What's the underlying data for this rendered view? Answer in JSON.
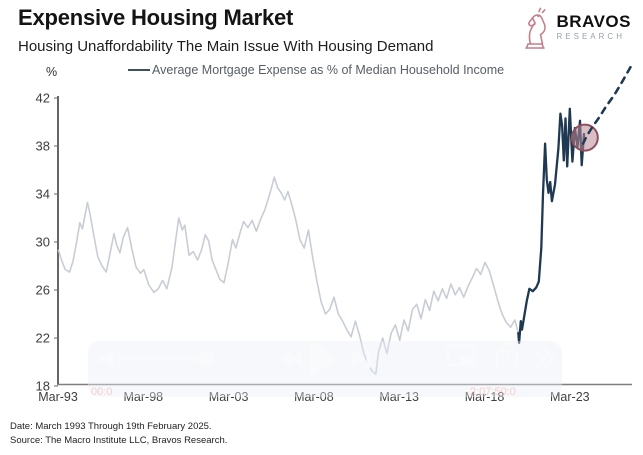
{
  "header": {
    "title": "Expensive Housing Market",
    "subtitle": "Housing Unaffordability The Main Issue With Housing Demand"
  },
  "logo": {
    "brand": "BRAVOS",
    "sub": "RESEARCH",
    "icon": "knight-chess-icon",
    "color": "#c57f8b"
  },
  "legend": {
    "label": "Average Mortgage Expense as % of Median Household Income",
    "swatch_color": "#3c4f63"
  },
  "chart_data": {
    "type": "line",
    "title": "Average Mortgage Expense as % of Median Household Income",
    "y_axis": {
      "label": "%",
      "ticks": [
        42,
        38,
        34,
        30,
        26,
        22,
        18
      ],
      "range": [
        18,
        42
      ],
      "grid": false
    },
    "x_axis": {
      "ticks": [
        "Mar-93",
        "Mar-98",
        "Mar-03",
        "Mar-08",
        "Mar-13",
        "Mar-18",
        "Mar-23"
      ],
      "tick_years": [
        1993.17,
        1998.17,
        2003.17,
        2008.17,
        2013.17,
        2018.17,
        2023.17
      ]
    },
    "series": [
      {
        "name": "historical",
        "color": "#c8cdd5",
        "style": "solid",
        "width": 1.6,
        "points": [
          [
            1993.2,
            29.3
          ],
          [
            1993.4,
            28.4
          ],
          [
            1993.6,
            27.7
          ],
          [
            1993.85,
            27.5
          ],
          [
            1994.05,
            28.4
          ],
          [
            1994.25,
            29.9
          ],
          [
            1994.45,
            31.6
          ],
          [
            1994.6,
            31.1
          ],
          [
            1994.9,
            33.3
          ],
          [
            1995.05,
            32.3
          ],
          [
            1995.25,
            30.7
          ],
          [
            1995.5,
            28.8
          ],
          [
            1995.75,
            28.0
          ],
          [
            1996.0,
            27.5
          ],
          [
            1996.2,
            28.9
          ],
          [
            1996.45,
            30.7
          ],
          [
            1996.6,
            29.8
          ],
          [
            1996.8,
            29.1
          ],
          [
            1997.0,
            30.4
          ],
          [
            1997.25,
            31.2
          ],
          [
            1997.5,
            29.4
          ],
          [
            1997.75,
            27.9
          ],
          [
            1998.0,
            27.4
          ],
          [
            1998.2,
            27.7
          ],
          [
            1998.5,
            26.4
          ],
          [
            1998.8,
            25.8
          ],
          [
            1999.05,
            26.1
          ],
          [
            1999.3,
            26.8
          ],
          [
            1999.55,
            26.1
          ],
          [
            1999.85,
            27.9
          ],
          [
            2000.05,
            30.0
          ],
          [
            2000.25,
            32.0
          ],
          [
            2000.45,
            31.0
          ],
          [
            2000.6,
            31.4
          ],
          [
            2000.85,
            28.9
          ],
          [
            2001.1,
            29.2
          ],
          [
            2001.35,
            28.5
          ],
          [
            2001.6,
            29.4
          ],
          [
            2001.8,
            30.6
          ],
          [
            2002.0,
            30.1
          ],
          [
            2002.2,
            28.5
          ],
          [
            2002.4,
            27.8
          ],
          [
            2002.65,
            26.9
          ],
          [
            2002.9,
            26.6
          ],
          [
            2003.15,
            28.3
          ],
          [
            2003.4,
            30.2
          ],
          [
            2003.6,
            29.5
          ],
          [
            2003.85,
            30.8
          ],
          [
            2004.05,
            31.7
          ],
          [
            2004.3,
            31.2
          ],
          [
            2004.55,
            31.8
          ],
          [
            2004.8,
            30.9
          ],
          [
            2005.05,
            31.9
          ],
          [
            2005.3,
            32.7
          ],
          [
            2005.6,
            34.1
          ],
          [
            2005.85,
            35.4
          ],
          [
            2006.05,
            34.5
          ],
          [
            2006.25,
            34.1
          ],
          [
            2006.45,
            33.5
          ],
          [
            2006.65,
            34.2
          ],
          [
            2006.9,
            33.0
          ],
          [
            2007.1,
            31.9
          ],
          [
            2007.35,
            30.2
          ],
          [
            2007.6,
            29.5
          ],
          [
            2007.85,
            31.0
          ],
          [
            2008.1,
            28.7
          ],
          [
            2008.35,
            26.7
          ],
          [
            2008.6,
            25.0
          ],
          [
            2008.85,
            24.0
          ],
          [
            2009.1,
            24.4
          ],
          [
            2009.35,
            25.4
          ],
          [
            2009.6,
            24.0
          ],
          [
            2009.85,
            23.4
          ],
          [
            2010.1,
            22.7
          ],
          [
            2010.35,
            22.1
          ],
          [
            2010.6,
            23.4
          ],
          [
            2010.85,
            22.2
          ],
          [
            2011.1,
            20.7
          ],
          [
            2011.35,
            19.8
          ],
          [
            2011.6,
            19.2
          ],
          [
            2011.8,
            19.0
          ],
          [
            2011.95,
            20.8
          ],
          [
            2012.2,
            22.0
          ],
          [
            2012.45,
            20.7
          ],
          [
            2012.7,
            22.4
          ],
          [
            2012.95,
            23.1
          ],
          [
            2013.2,
            21.8
          ],
          [
            2013.45,
            23.5
          ],
          [
            2013.7,
            22.6
          ],
          [
            2013.95,
            24.4
          ],
          [
            2014.2,
            24.8
          ],
          [
            2014.45,
            23.6
          ],
          [
            2014.7,
            25.2
          ],
          [
            2014.95,
            24.3
          ],
          [
            2015.2,
            25.9
          ],
          [
            2015.45,
            25.1
          ],
          [
            2015.7,
            26.1
          ],
          [
            2015.95,
            25.3
          ],
          [
            2016.2,
            26.5
          ],
          [
            2016.45,
            25.6
          ],
          [
            2016.7,
            26.2
          ],
          [
            2016.95,
            25.4
          ],
          [
            2017.2,
            26.3
          ],
          [
            2017.45,
            27.0
          ],
          [
            2017.7,
            27.8
          ],
          [
            2017.95,
            27.3
          ],
          [
            2018.2,
            28.3
          ],
          [
            2018.45,
            27.6
          ],
          [
            2018.7,
            26.4
          ],
          [
            2018.95,
            25.1
          ],
          [
            2019.2,
            24.0
          ],
          [
            2019.45,
            23.3
          ],
          [
            2019.7,
            22.9
          ],
          [
            2019.95,
            23.5
          ],
          [
            2020.15,
            22.4
          ]
        ]
      },
      {
        "name": "recent",
        "color": "#1e3951",
        "style": "solid",
        "width": 2.3,
        "points": [
          [
            2020.15,
            22.4
          ],
          [
            2020.2,
            21.6
          ],
          [
            2020.3,
            23.4
          ],
          [
            2020.37,
            22.7
          ],
          [
            2020.5,
            23.8
          ],
          [
            2020.65,
            25.1
          ],
          [
            2020.8,
            26.1
          ],
          [
            2021.0,
            25.9
          ],
          [
            2021.2,
            26.2
          ],
          [
            2021.35,
            26.7
          ],
          [
            2021.5,
            29.5
          ],
          [
            2021.6,
            34.0
          ],
          [
            2021.72,
            38.2
          ],
          [
            2021.82,
            35.2
          ],
          [
            2021.92,
            34.1
          ],
          [
            2022.02,
            35.0
          ],
          [
            2022.12,
            33.4
          ],
          [
            2022.3,
            34.8
          ],
          [
            2022.5,
            37.8
          ],
          [
            2022.62,
            40.7
          ],
          [
            2022.72,
            39.7
          ],
          [
            2022.82,
            36.8
          ],
          [
            2022.92,
            40.3
          ],
          [
            2023.02,
            36.3
          ],
          [
            2023.17,
            41.1
          ],
          [
            2023.32,
            36.7
          ],
          [
            2023.47,
            39.5
          ],
          [
            2023.62,
            37.9
          ],
          [
            2023.77,
            40.1
          ],
          [
            2023.87,
            36.4
          ],
          [
            2024.0,
            39.0
          ]
        ]
      },
      {
        "name": "projection",
        "color": "#1e3951",
        "style": "dashed",
        "width": 2.4,
        "points": [
          [
            2023.95,
            38.2
          ],
          [
            2024.15,
            38.8
          ],
          [
            2024.5,
            39.6
          ],
          [
            2024.9,
            40.4
          ],
          [
            2025.3,
            41.3
          ],
          [
            2025.8,
            42.3
          ],
          [
            2026.3,
            43.5
          ],
          [
            2026.9,
            45.0
          ]
        ]
      }
    ],
    "annotation_circle": {
      "year": 2024.05,
      "value": 38.7,
      "radius_px": 13,
      "fill": "#b98995",
      "fill_opacity": 0.55,
      "stroke": "#8e4f5e"
    }
  },
  "footer": {
    "line1": "Date: March 1993 Through 19th February 2025.",
    "line2": "Source: The Macro Institute LLC, Bravos Research."
  },
  "video_overlay": {
    "icons": [
      "volume-icon",
      "seek-slider",
      "rewind-icon",
      "play-icon",
      "skip-forward-icon",
      "pip-icon",
      "share-icon",
      "fast-forward-icon"
    ],
    "timestamp_left": "00:0",
    "timestamp_right": "2:07:50:0"
  }
}
